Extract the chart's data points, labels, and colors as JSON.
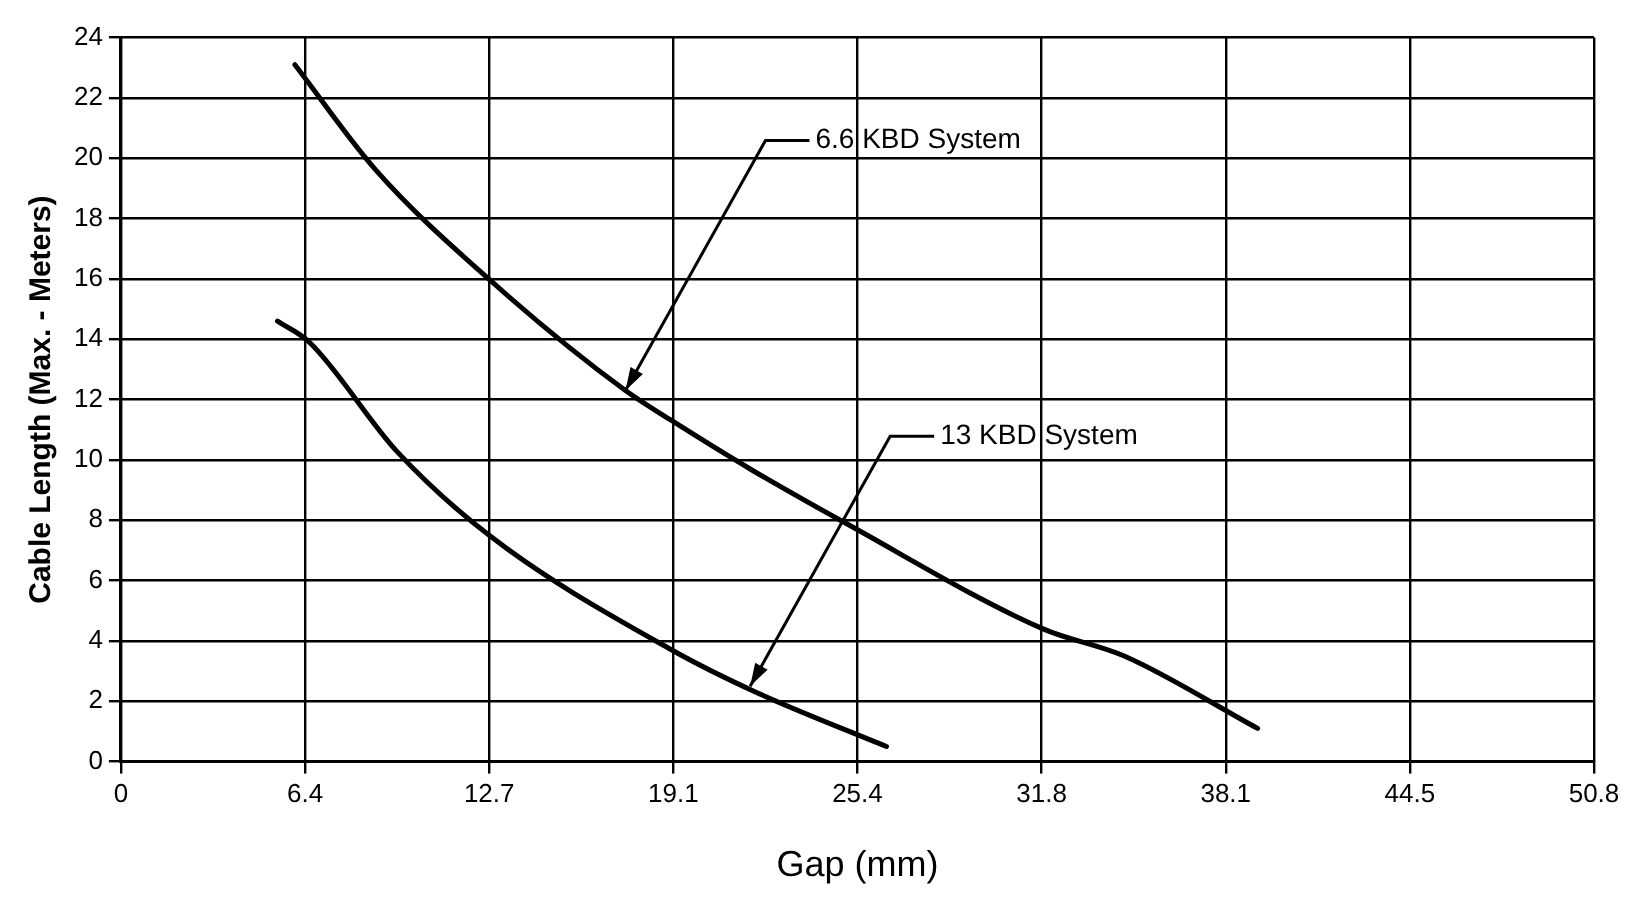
{
  "chart_data": {
    "type": "line",
    "xlabel": "Gap (mm)",
    "ylabel": "Cable Length (Max. - Meters)",
    "series": [
      {
        "color": "#000000",
        "x": [
          6.0,
          8.8,
          12.8,
          17.4,
          19.0,
          21.7,
          25.0,
          31.8,
          34.6,
          39.2
        ],
        "values": [
          23.1,
          19.6,
          15.9,
          12.3,
          11.3,
          9.7,
          7.9,
          4.4,
          3.5,
          1.1
        ]
      },
      {
        "color": "#000000",
        "x": [
          5.4,
          6.5,
          9.5,
          12.7,
          19.0,
          21.9,
          26.4
        ],
        "values": [
          14.6,
          13.9,
          10.3,
          7.5,
          3.7,
          2.3,
          0.5
        ]
      }
    ],
    "annotations": [
      {
        "text": "6.6 KBD System",
        "x": 17.4,
        "y": 12.3
      },
      {
        "text": "13 KBD System",
        "x": 21.7,
        "y": 2.5
      }
    ],
    "xlim": [
      0,
      50.8
    ],
    "xticks": [
      0,
      {
        "value": 6.35,
        "label": "6.4"
      },
      12.7,
      {
        "value": 19.05,
        "label": "19.1"
      },
      25.4,
      {
        "value": 31.75,
        "label": "31.8"
      },
      38.1,
      {
        "value": 44.45,
        "label": "44.5"
      },
      50.8
    ],
    "ylim": [
      0,
      24
    ],
    "yticks": [
      0,
      2,
      4,
      6,
      8,
      10,
      12,
      14,
      16,
      18,
      20,
      22,
      24
    ],
    "grid": true,
    "legend": false,
    "marker": "none",
    "line_style": "solid"
  }
}
